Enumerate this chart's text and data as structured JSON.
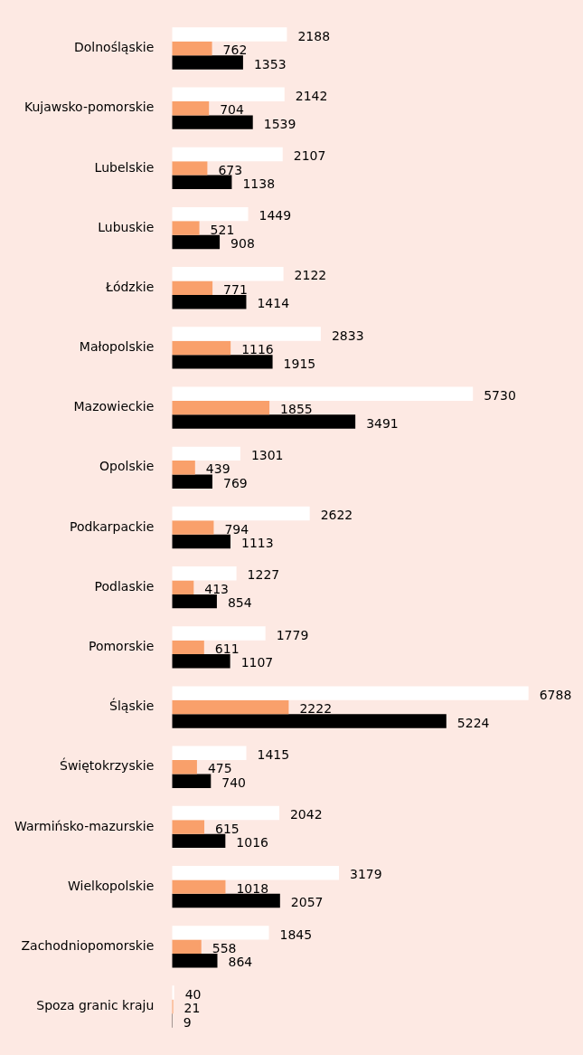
{
  "chart_data": {
    "type": "bar",
    "orientation": "horizontal",
    "categories": [
      "Dolnośląskie",
      "Kujawsko-pomorskie",
      "Lubelskie",
      "Lubuskie",
      "Łódzkie",
      "Małopolskie",
      "Mazowieckie",
      "Opolskie",
      "Podkarpackie",
      "Podlaskie",
      "Pomorskie",
      "Śląskie",
      "Świętokrzyskie",
      "Warmińsko-mazurskie",
      "Wielkopolskie",
      "Zachodniopomorskie",
      "Spoza granic kraju"
    ],
    "series": [
      {
        "color": "#ffffff",
        "values": [
          2188,
          2142,
          2107,
          1449,
          2122,
          2833,
          5730,
          1301,
          2622,
          1227,
          1779,
          6788,
          1415,
          2042,
          3179,
          1845,
          40
        ]
      },
      {
        "color": "#f9a06b",
        "values": [
          762,
          704,
          673,
          521,
          771,
          1116,
          1855,
          439,
          794,
          413,
          611,
          2222,
          475,
          615,
          1018,
          558,
          21
        ]
      },
      {
        "color": "#000000",
        "values": [
          1353,
          1539,
          1138,
          908,
          1414,
          1915,
          3491,
          769,
          1113,
          854,
          1107,
          5224,
          740,
          1016,
          2057,
          864,
          9
        ]
      }
    ],
    "data_labels": true,
    "grid": false,
    "legend": false,
    "tick_labels": "y"
  }
}
